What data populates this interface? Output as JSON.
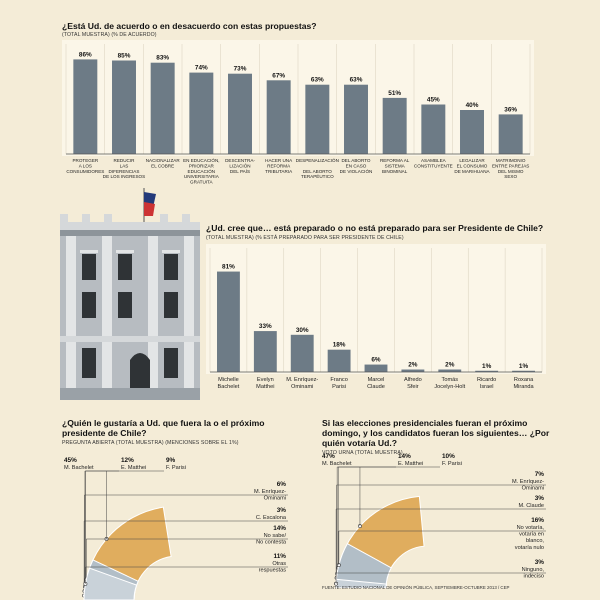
{
  "chart_data": [
    {
      "type": "bar",
      "title": "¿Está Ud. de acuerdo o en desacuerdo con estas propuestas?",
      "subtitle": "(TOTAL MUESTRA) (% DE ACUERDO)",
      "categories": [
        [
          "PROTEGER",
          "A LOS",
          "CONSUMIDORES"
        ],
        [
          "REDUCIR",
          "LAS",
          "DIFERENCIAS",
          "DE LOS INGRESOS"
        ],
        [
          "NACIONALIZAR",
          "EL COBRE"
        ],
        [
          "EN EDUCACIÓN,",
          "PRIORIZAR",
          "EDUCACIÓN",
          "UNIVERSITARIA",
          "GRATUITA"
        ],
        [
          "DESCENTRA-",
          "LIZACIÓN",
          "DEL PAÍS"
        ],
        [
          "HACER UNA",
          "REFORMA",
          "TRIBUTARIA"
        ],
        [
          "DESPENALIZACIÓN",
          "",
          "DEL ABORTO",
          "TERAPÉUTICO"
        ],
        [
          "DEL ABORTO",
          "EN CASO",
          "DE VIOLACIÓN"
        ],
        [
          "REFORMA AL",
          "SISTEMA",
          "BINOMINAL"
        ],
        [
          "ASAMBLEA",
          "CONSTITUYENTE"
        ],
        [
          "LEGALIZAR",
          "EL CONSUMO",
          "DE MARIHUANA"
        ],
        [
          "MATRIMONIO",
          "ENTRE PAREJAS",
          "DEL MISMO",
          "SEXO"
        ]
      ],
      "values": [
        86,
        85,
        83,
        74,
        73,
        67,
        63,
        63,
        51,
        45,
        40,
        36
      ],
      "value_labels": [
        "86%",
        "85%",
        "83%",
        "74%",
        "73%",
        "67%",
        "63%",
        "63%",
        "51%",
        "45%",
        "40%",
        "36%"
      ],
      "ylim": [
        0,
        100
      ],
      "grid": true,
      "bar_color": "#6d7b86"
    },
    {
      "type": "bar",
      "title": "¿Ud. cree que… está preparado o no está preparado para ser Presidente de Chile?",
      "subtitle": "(TOTAL MUESTRA) (% ESTÁ PREPARADO PARA SER PRESIDENTE DE CHILE)",
      "categories": [
        [
          "Michelle",
          "Bachelet"
        ],
        [
          "Evelyn",
          "Matthei"
        ],
        [
          "M. Enríquez-",
          "Ominami"
        ],
        [
          "Franco",
          "Parisi"
        ],
        [
          "Marcel",
          "Claude"
        ],
        [
          "Alfredo",
          "Sfeir"
        ],
        [
          "Tomás",
          "Jocelyn-Holt"
        ],
        [
          "Ricardo",
          "Israel"
        ],
        [
          "Roxana",
          "Miranda"
        ]
      ],
      "values": [
        81,
        33,
        30,
        18,
        6,
        2,
        2,
        1,
        1
      ],
      "value_labels": [
        "81%",
        "33%",
        "30%",
        "18%",
        "6%",
        "2%",
        "2%",
        "1%",
        "1%"
      ],
      "ylim": [
        0,
        100
      ],
      "grid": true,
      "bar_color": "#6d7b86"
    },
    {
      "type": "pie",
      "title": "¿Quién le gustaría  a Ud. que fuera la o el próximo presidente de Chile?",
      "subtitle": "PREGUNTA ABIERTA (TOTAL MUESTRA) (MENCIONES SOBRE EL 1%)",
      "slices": [
        {
          "label": [
            "M. Bachelet"
          ],
          "value": 45,
          "pct": "45%",
          "color": "#e0ad5e"
        },
        {
          "label": [
            "E. Matthei"
          ],
          "value": 12,
          "pct": "12%",
          "color": "#3c4a55"
        },
        {
          "label": [
            "F. Parisi"
          ],
          "value": 9,
          "pct": "9%",
          "color": "#5d6c78"
        },
        {
          "label": [
            "M. Enríquez-",
            "Ominami"
          ],
          "value": 6,
          "pct": "6%",
          "color": "#7b8a96"
        },
        {
          "label": [
            "C. Escalona"
          ],
          "value": 3,
          "pct": "3%",
          "color": "#97a5b0"
        },
        {
          "label": [
            "No sabe/",
            "No contesta"
          ],
          "value": 14,
          "pct": "14%",
          "color": "#b2bec7"
        },
        {
          "label": [
            "Otras",
            "respuestas"
          ],
          "value": 11,
          "pct": "11%",
          "color": "#c9d2d9"
        }
      ]
    },
    {
      "type": "pie",
      "title": "Si las elecciones presidenciales fueran el próximo domingo, y los candidatos fueran los siguientes… ¿Por quién votaría Ud.?",
      "subtitle": "VOTO URNA (TOTAL MUESTRA)",
      "slices": [
        {
          "label": [
            "M. Bachelet"
          ],
          "value": 47,
          "pct": "47%",
          "color": "#e0ad5e"
        },
        {
          "label": [
            "E. Matthei"
          ],
          "value": 14,
          "pct": "14%",
          "color": "#3c4a55"
        },
        {
          "label": [
            "F. Parisi"
          ],
          "value": 10,
          "pct": "10%",
          "color": "#5d6c78"
        },
        {
          "label": [
            "M. Enríquez-",
            "Ominami"
          ],
          "value": 7,
          "pct": "7%",
          "color": "#7b8a96"
        },
        {
          "label": [
            "M. Claude"
          ],
          "value": 3,
          "pct": "3%",
          "color": "#97a5b0"
        },
        {
          "label": [
            "No votaría,",
            "votaría en",
            "blanco,",
            "votaría nulo"
          ],
          "value": 16,
          "pct": "16%",
          "color": "#b2bec7"
        },
        {
          "label": [
            "Ninguno,",
            "indeciso"
          ],
          "value": 3,
          "pct": "3%",
          "color": "#c9d2d9"
        }
      ]
    }
  ],
  "source": "FUENTE: ESTUDIO NACIONAL DE OPINIÓN PÚBLICA, SEPTIEMBRE-OCTUBRE 2013 / CEP"
}
